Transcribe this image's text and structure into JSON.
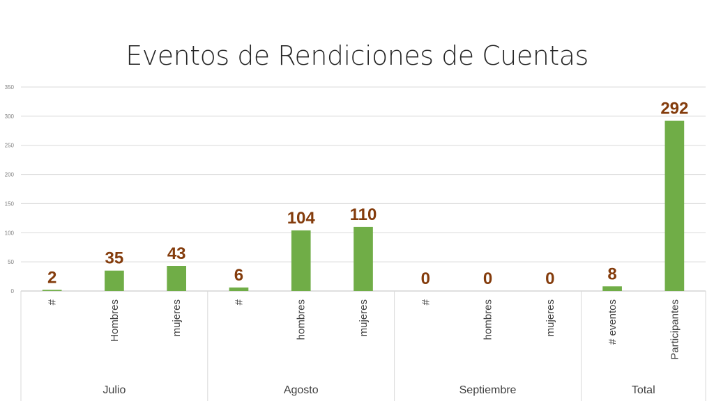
{
  "chart_data": {
    "type": "bar",
    "title": "Eventos de Rendiciones de Cuentas",
    "xlabel": "",
    "ylabel": "",
    "ylim": [
      0,
      350
    ],
    "yticks": [
      0,
      50,
      100,
      150,
      200,
      250,
      300,
      350
    ],
    "grid": true,
    "legend": "none",
    "bar_color": "#70ad47",
    "label_color": "#843c0c",
    "groups": [
      {
        "name": "Julio",
        "categories": [
          "#",
          "Hombres",
          "mujeres"
        ],
        "values": [
          2,
          35,
          43
        ]
      },
      {
        "name": "Agosto",
        "categories": [
          "#",
          "hombres",
          "mujeres"
        ],
        "values": [
          6,
          104,
          110
        ]
      },
      {
        "name": "Septiembre",
        "categories": [
          "#",
          "hombres",
          "mujeres"
        ],
        "values": [
          0,
          0,
          0
        ]
      },
      {
        "name": "Total",
        "categories": [
          "# eventos",
          "Participantes"
        ],
        "values": [
          8,
          292
        ]
      }
    ]
  }
}
